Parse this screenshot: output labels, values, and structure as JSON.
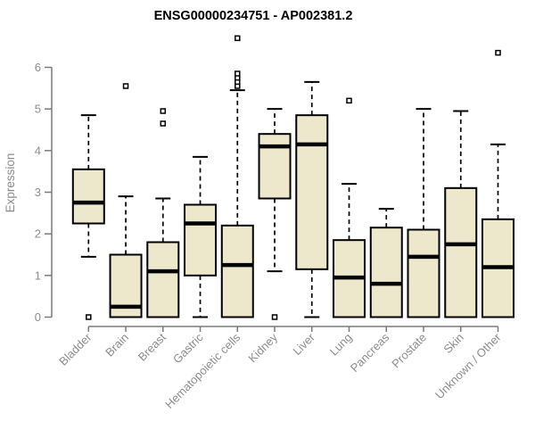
{
  "chart_data": {
    "type": "boxplot",
    "title": "ENSG00000234751 - AP002381.2",
    "xlabel": "",
    "ylabel": "Expression",
    "ylim": [
      0,
      6.7
    ],
    "yticks": [
      0,
      1,
      2,
      3,
      4,
      5,
      6
    ],
    "grid": false,
    "x_label_rotation": 45,
    "categories": [
      "Bladder",
      "Brain",
      "Breast",
      "Gastric",
      "Hematopoietic cells",
      "Kidney",
      "Liver",
      "Lung",
      "Pancreas",
      "Prostate",
      "Skin",
      "Unknown / Other"
    ],
    "series": [
      {
        "category": "Bladder",
        "whisker_low": 1.45,
        "q1": 2.25,
        "median": 2.75,
        "q3": 3.55,
        "whisker_high": 4.85,
        "outliers": [
          0
        ]
      },
      {
        "category": "Brain",
        "whisker_low": 0,
        "q1": 0,
        "median": 0.25,
        "q3": 1.5,
        "whisker_high": 2.9,
        "outliers": [
          5.55
        ]
      },
      {
        "category": "Breast",
        "whisker_low": 0,
        "q1": 0,
        "median": 1.1,
        "q3": 1.8,
        "whisker_high": 2.85,
        "outliers": [
          4.65,
          4.95
        ]
      },
      {
        "category": "Gastric",
        "whisker_low": 0,
        "q1": 1.0,
        "median": 2.25,
        "q3": 2.7,
        "whisker_high": 3.85,
        "outliers": []
      },
      {
        "category": "Hematopoietic cells",
        "whisker_low": 0,
        "q1": 0,
        "median": 1.25,
        "q3": 2.2,
        "whisker_high": 5.45,
        "outliers": [
          5.55,
          5.65,
          5.75,
          5.85,
          6.7
        ]
      },
      {
        "category": "Kidney",
        "whisker_low": 1.1,
        "q1": 2.85,
        "median": 4.1,
        "q3": 4.4,
        "whisker_high": 5.0,
        "outliers": [
          0
        ]
      },
      {
        "category": "Liver",
        "whisker_low": 0,
        "q1": 1.15,
        "median": 4.15,
        "q3": 4.85,
        "whisker_high": 5.65,
        "outliers": []
      },
      {
        "category": "Lung",
        "whisker_low": 0,
        "q1": 0,
        "median": 0.95,
        "q3": 1.85,
        "whisker_high": 3.2,
        "outliers": [
          5.2
        ]
      },
      {
        "category": "Pancreas",
        "whisker_low": 0,
        "q1": 0,
        "median": 0.8,
        "q3": 2.15,
        "whisker_high": 2.6,
        "outliers": []
      },
      {
        "category": "Prostate",
        "whisker_low": 0,
        "q1": 0,
        "median": 1.45,
        "q3": 2.1,
        "whisker_high": 5.0,
        "outliers": []
      },
      {
        "category": "Skin",
        "whisker_low": 0,
        "q1": 0,
        "median": 1.75,
        "q3": 3.1,
        "whisker_high": 4.95,
        "outliers": []
      },
      {
        "category": "Unknown / Other",
        "whisker_low": 0,
        "q1": 0,
        "median": 1.2,
        "q3": 2.35,
        "whisker_high": 4.15,
        "outliers": [
          6.35
        ]
      }
    ],
    "colors": {
      "box_fill": "#ede7cb",
      "box_border": "#000000",
      "median": "#000000",
      "whisker": "#000000",
      "outlier_stroke": "#000000",
      "axis": "#7a7a7a",
      "tick_text": "#8c8c8c",
      "title_text": "#000000",
      "background": "#ffffff"
    }
  }
}
